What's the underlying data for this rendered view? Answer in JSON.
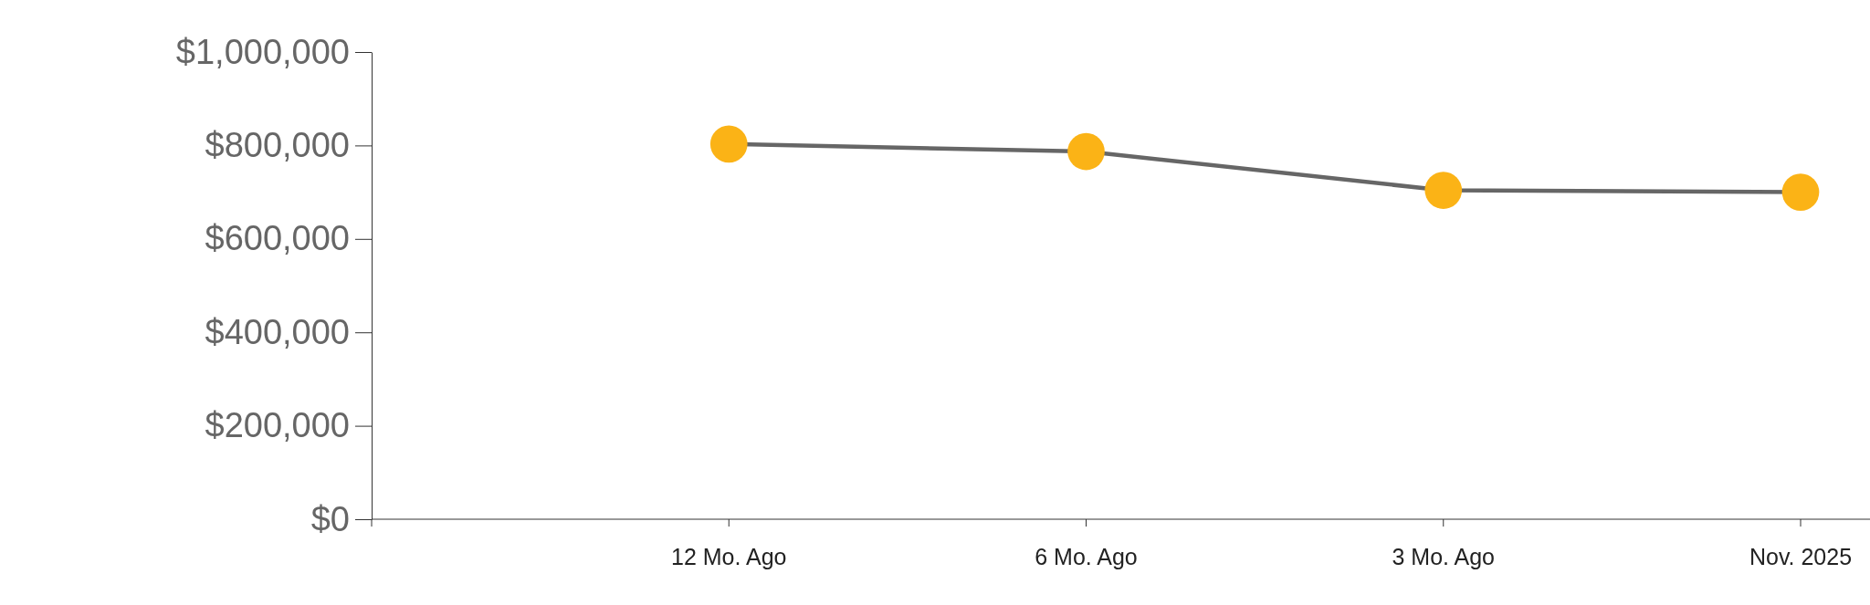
{
  "chart_data": {
    "type": "line",
    "categories": [
      "12 Mo. Ago",
      "6 Mo. Ago",
      "3 Mo. Ago",
      "Nov. 2025"
    ],
    "series": [
      {
        "color": "#fbb316",
        "values": [
          803000,
          787000,
          704000,
          700000
        ]
      }
    ],
    "marker": "circle",
    "line_style": "solid",
    "ylim": [
      0,
      1000000
    ],
    "yticks": [
      {
        "value": 0,
        "label": "$0"
      },
      {
        "value": 200000,
        "label": "$200,000"
      },
      {
        "value": 400000,
        "label": "$400,000"
      },
      {
        "value": 600000,
        "label": "$600,000"
      },
      {
        "value": 800000,
        "label": "$800,000"
      },
      {
        "value": 1000000,
        "label": "$1,000,000"
      }
    ]
  }
}
